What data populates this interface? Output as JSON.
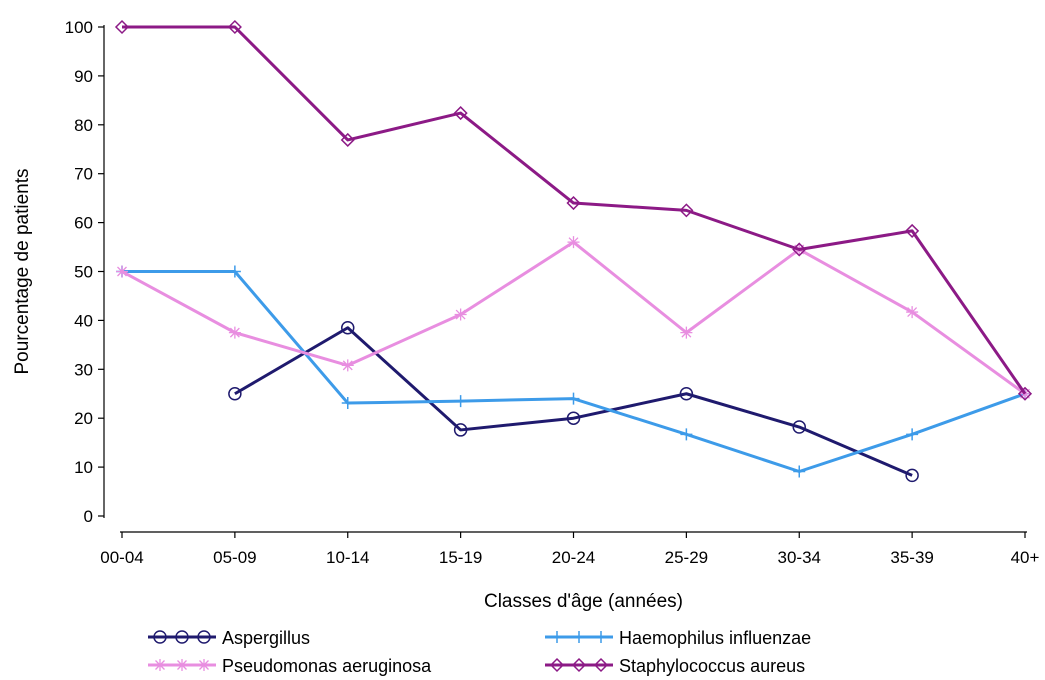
{
  "chart_data": {
    "type": "line",
    "xlabel": "Classes d'âge (années)",
    "ylabel": "Pourcentage de patients",
    "categories": [
      "00-04",
      "05-09",
      "10-14",
      "15-19",
      "20-24",
      "25-29",
      "30-34",
      "35-39",
      "40+"
    ],
    "ylim": [
      0,
      100
    ],
    "yticks": [
      0,
      10,
      20,
      30,
      40,
      50,
      60,
      70,
      80,
      90,
      100
    ],
    "grid": false,
    "legend_position": "bottom",
    "series": [
      {
        "name": "Aspergillus",
        "color": "#1f1a6e",
        "marker": "circle",
        "values": [
          null,
          25,
          38.5,
          17.6,
          20,
          25,
          18.2,
          8.3,
          null
        ]
      },
      {
        "name": "Haemophilus influenzae",
        "color": "#3d9be9",
        "marker": "plus",
        "values": [
          50,
          50,
          23.1,
          23.5,
          24,
          16.7,
          9.1,
          16.7,
          25
        ]
      },
      {
        "name": "Pseudomonas aeruginosa",
        "color": "#e88ee0",
        "marker": "star",
        "values": [
          50,
          37.5,
          30.8,
          41.2,
          56,
          37.5,
          54.5,
          41.7,
          25
        ]
      },
      {
        "name": "Staphylococcus aureus",
        "color": "#8c1a86",
        "marker": "diamond",
        "values": [
          100,
          100,
          76.9,
          82.4,
          64,
          62.5,
          54.5,
          58.3,
          25
        ]
      }
    ]
  }
}
